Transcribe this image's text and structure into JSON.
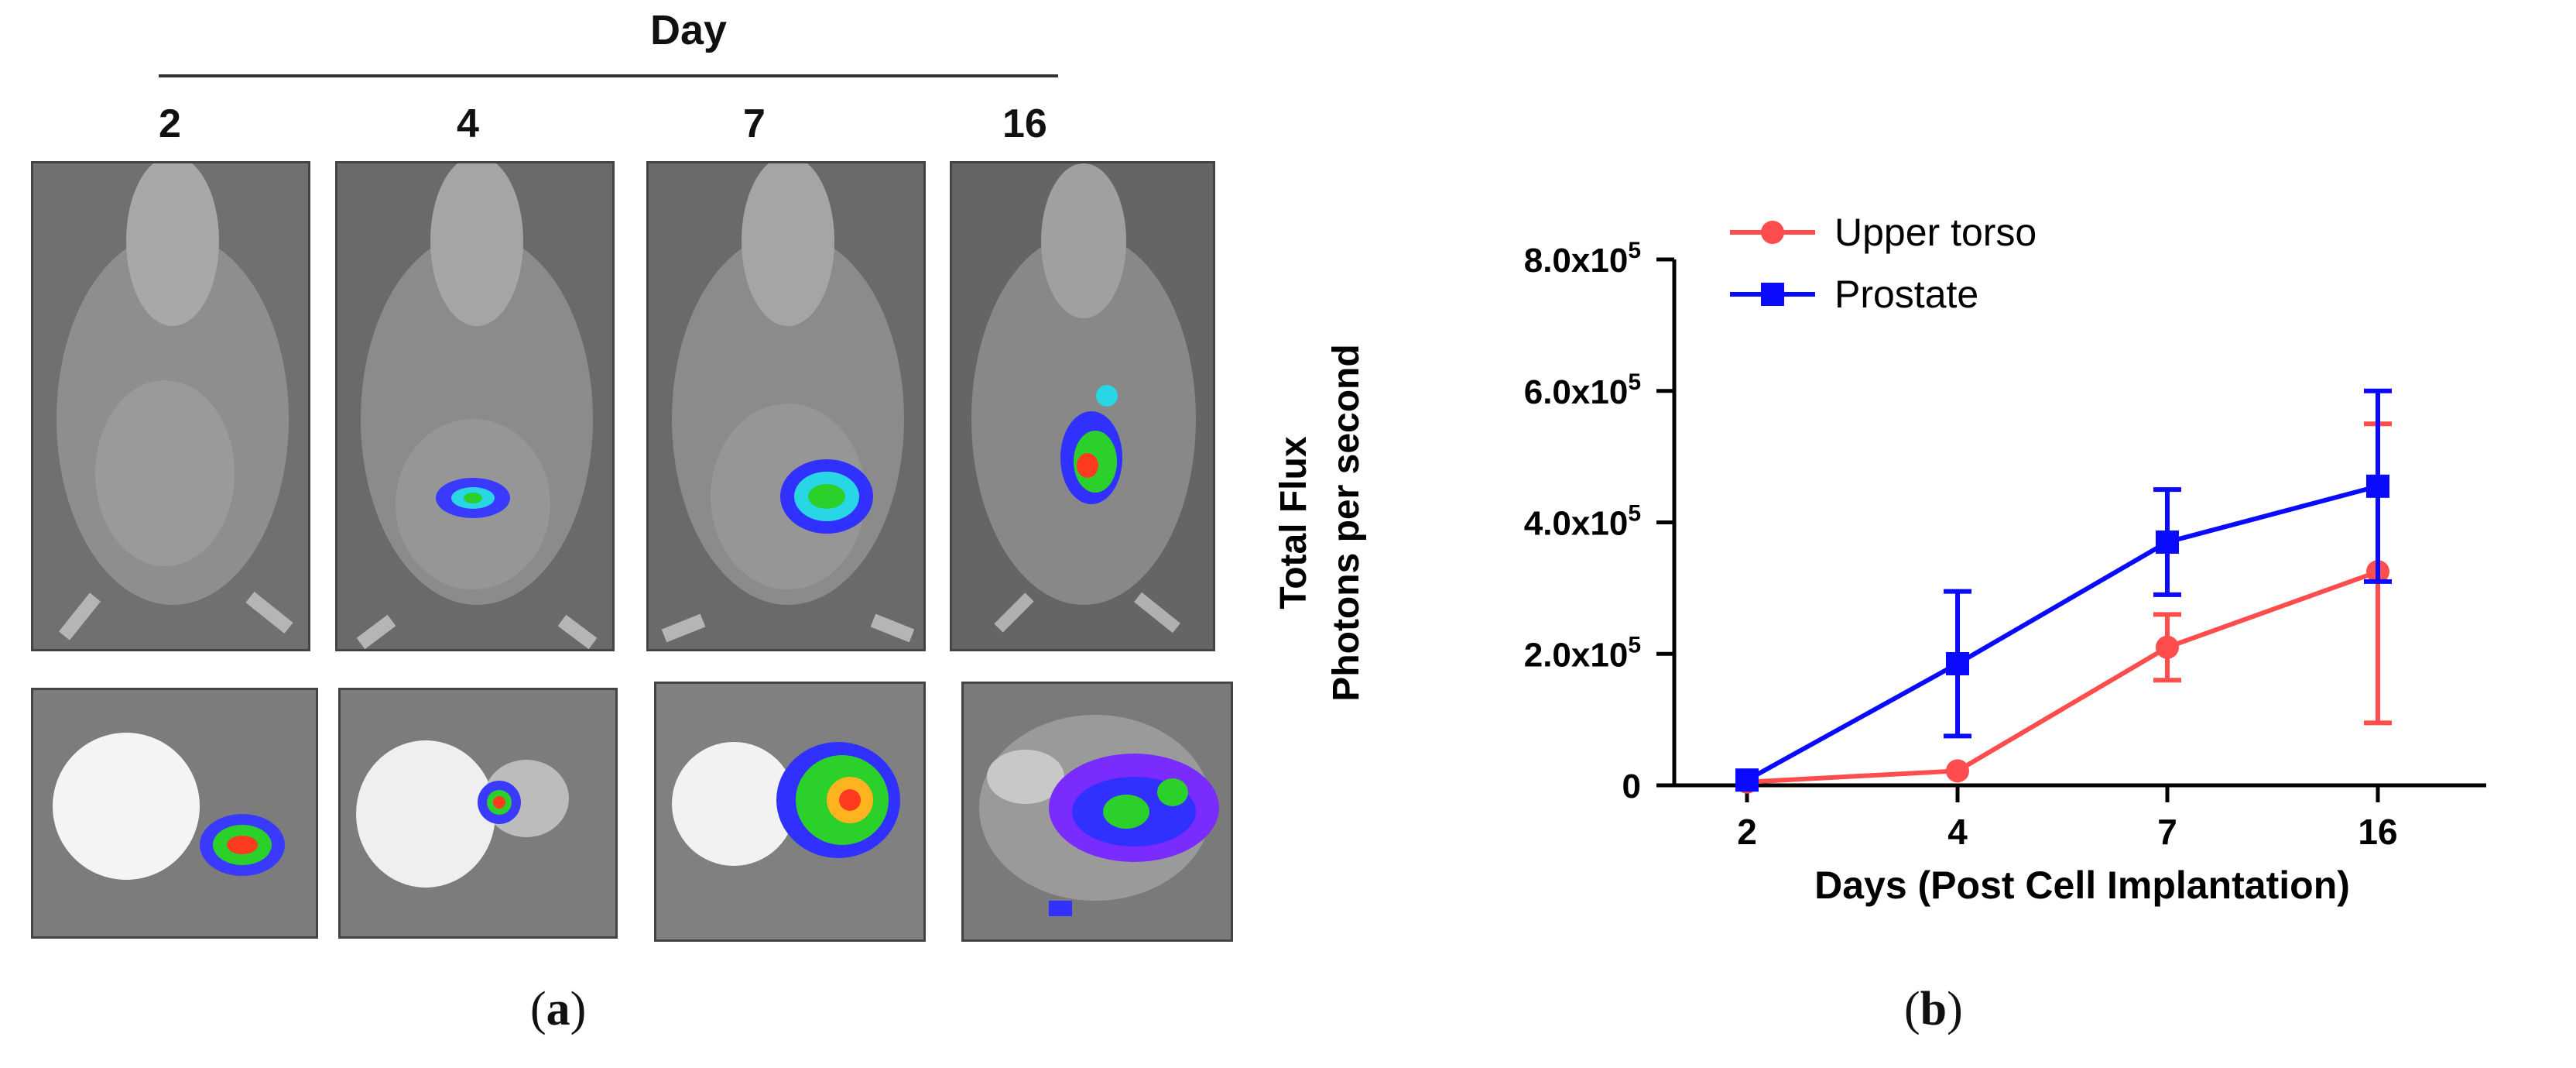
{
  "panel_a": {
    "header": "Day",
    "days": [
      "2",
      "4",
      "7",
      "16"
    ],
    "caption_open": "(",
    "caption_letter": "a",
    "caption_close": ")"
  },
  "panel_b": {
    "caption_open": "(",
    "caption_letter": "b",
    "caption_close": ")"
  },
  "colors": {
    "upper_torso": "#ff4d4d",
    "prostate": "#0a0aff"
  },
  "chart_data": {
    "type": "line",
    "title": "",
    "xlabel": "Days (Post Cell Implantation)",
    "ylabel_line1": "Total Flux",
    "ylabel_line2": "Photons per second",
    "categories": [
      "2",
      "4",
      "7",
      "16"
    ],
    "ylim": [
      0,
      800000
    ],
    "y_ticks": [
      {
        "value": 0,
        "label": "0"
      },
      {
        "value": 200000,
        "label": "2.0x10",
        "exp": "5"
      },
      {
        "value": 400000,
        "label": "4.0x10",
        "exp": "5"
      },
      {
        "value": 600000,
        "label": "6.0x10",
        "exp": "5"
      },
      {
        "value": 800000,
        "label": "8.0x10",
        "exp": "5"
      }
    ],
    "legend_position": "top-left",
    "series": [
      {
        "name": "Upper torso",
        "color": "#ff4d4d",
        "marker": "circle",
        "values": [
          5000,
          22000,
          210000,
          325000
        ],
        "err_upper": [
          0,
          0,
          50000,
          225000
        ],
        "err_lower": [
          0,
          0,
          50000,
          230000
        ]
      },
      {
        "name": "Prostate",
        "color": "#0a0aff",
        "marker": "square",
        "values": [
          8000,
          185000,
          370000,
          455000
        ],
        "err_upper": [
          0,
          110000,
          80000,
          145000
        ],
        "err_lower": [
          0,
          110000,
          80000,
          145000
        ]
      }
    ]
  }
}
